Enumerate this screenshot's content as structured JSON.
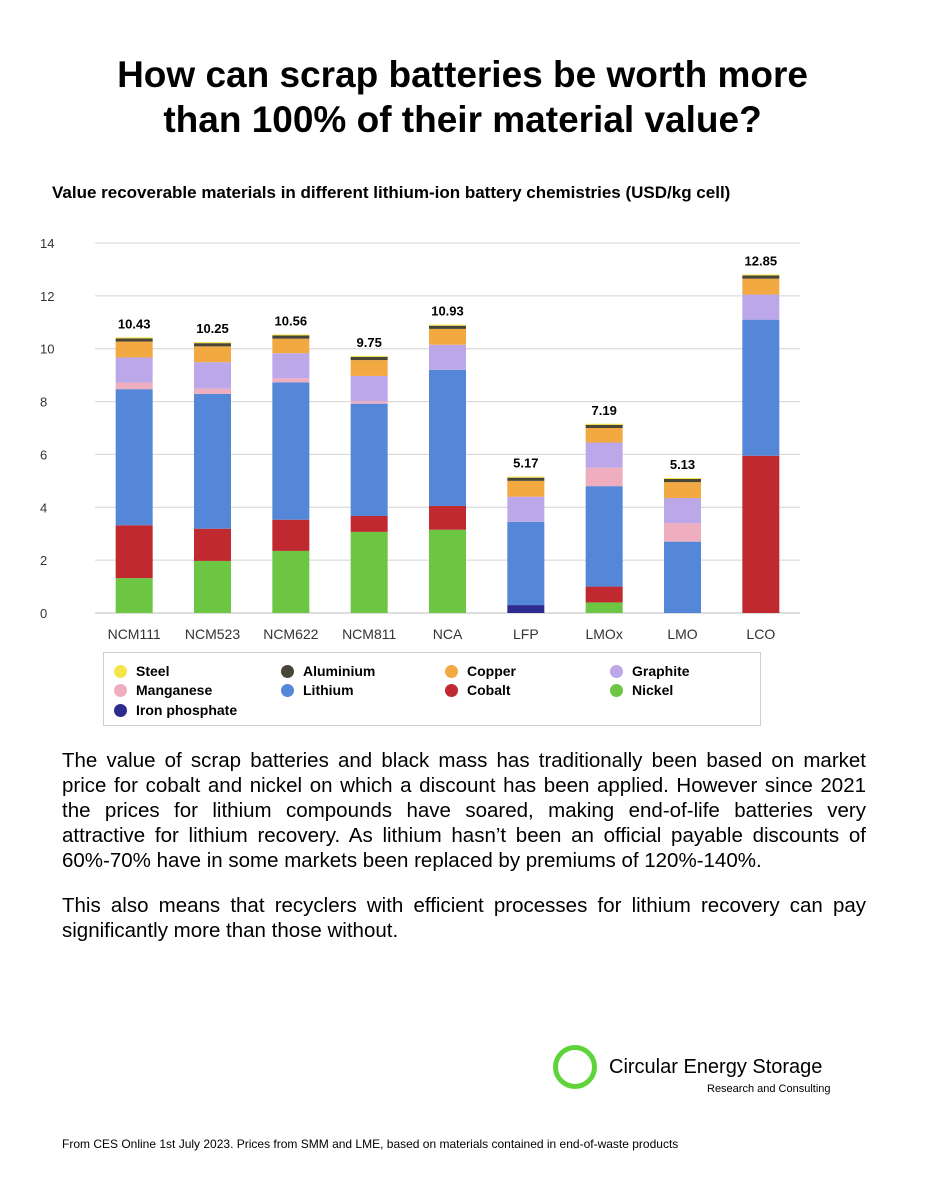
{
  "title": {
    "line1": "How can scrap batteries be worth more",
    "line2": "than 100% of their material value?"
  },
  "chart_data": {
    "type": "bar",
    "stacked": true,
    "title": "Value recoverable materials in different lithium-ion battery chemistries (USD/kg cell)",
    "categories": [
      "NCM111",
      "NCM523",
      "NCM622",
      "NCM811",
      "NCA",
      "LFP",
      "LMOx",
      "LMO",
      "LCO"
    ],
    "totals": [
      "10.43",
      "10.25",
      "10.56",
      "9.75",
      "10.93",
      "5.17",
      "7.19",
      "5.13",
      "12.85"
    ],
    "ylim": [
      0,
      14
    ],
    "yticks": [
      0,
      2,
      4,
      6,
      8,
      10,
      12,
      14
    ],
    "grid": true,
    "legend_position": "bottom",
    "series": [
      {
        "name": "Iron phosphate",
        "color": "#2e2b8f",
        "values": [
          0,
          0,
          0,
          0,
          0,
          0.3,
          0,
          0,
          0
        ]
      },
      {
        "name": "Nickel",
        "color": "#6cc644",
        "values": [
          1.32,
          1.97,
          2.35,
          3.07,
          3.15,
          0,
          0.4,
          0,
          0
        ]
      },
      {
        "name": "Cobalt",
        "color": "#c0292f",
        "values": [
          2.0,
          1.22,
          1.18,
          0.6,
          0.9,
          0,
          0.6,
          0,
          5.95
        ]
      },
      {
        "name": "Lithium",
        "color": "#5587d8",
        "values": [
          5.15,
          5.1,
          5.2,
          4.25,
          5.15,
          3.15,
          3.8,
          2.7,
          5.15
        ]
      },
      {
        "name": "Manganese",
        "color": "#eeaec0",
        "values": [
          0.25,
          0.2,
          0.15,
          0.1,
          0,
          0,
          0.7,
          0.7,
          0
        ]
      },
      {
        "name": "Graphite",
        "color": "#bca8e8",
        "values": [
          0.95,
          1.0,
          0.95,
          0.95,
          0.95,
          0.95,
          0.95,
          0.95,
          0.95
        ]
      },
      {
        "name": "Copper",
        "color": "#f2a942",
        "values": [
          0.6,
          0.6,
          0.55,
          0.6,
          0.6,
          0.6,
          0.55,
          0.6,
          0.6
        ]
      },
      {
        "name": "Aluminium",
        "color": "#4a4637",
        "values": [
          0.12,
          0.12,
          0.12,
          0.12,
          0.12,
          0.12,
          0.12,
          0.12,
          0.12
        ]
      },
      {
        "name": "Steel",
        "color": "#f4e54a",
        "values": [
          0.04,
          0.04,
          0.04,
          0.04,
          0.04,
          0.04,
          0.04,
          0.04,
          0.04
        ]
      }
    ]
  },
  "legend": [
    {
      "label": "Steel",
      "color": "#f4e54a"
    },
    {
      "label": "Aluminium",
      "color": "#4a4637"
    },
    {
      "label": "Copper",
      "color": "#f2a942"
    },
    {
      "label": "Graphite",
      "color": "#bca8e8"
    },
    {
      "label": "Manganese",
      "color": "#eeaec0"
    },
    {
      "label": "Lithium",
      "color": "#5587d8"
    },
    {
      "label": "Cobalt",
      "color": "#c0292f"
    },
    {
      "label": "Nickel",
      "color": "#6cc644"
    },
    {
      "label": "Iron phosphate",
      "color": "#2e2b8f"
    }
  ],
  "body": {
    "p1": "The value of scrap batteries and black mass has traditionally been based on market price for cobalt and nickel on which a discount has been applied. However since 2021 the prices for lithium compounds have soared, making end-of-life batteries very attractive for lithium recovery. As lithium hasn’t been an official payable discounts of 60%-70% have in some markets been replaced by premiums of 120%-140%.",
    "p2": "This also means that recyclers with efficient processes for lithium recovery can pay significantly more than those without."
  },
  "logo": {
    "name": "Circular Energy Storage",
    "tagline": "Research and Consulting",
    "color": "#5fd43a"
  },
  "footer": "From CES Online 1st July 2023. Prices from SMM and LME, based on materials contained in end-of-waste products"
}
